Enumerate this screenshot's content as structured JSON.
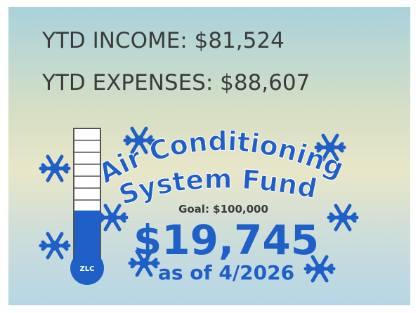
{
  "header": {
    "income": "YTD INCOME: $81,524",
    "expenses": "YTD EXPENSES: $88,607"
  },
  "fund": {
    "title_line1": "Air Conditioning",
    "title_line2": "System Fund",
    "goal": "Goal: $100,000",
    "amount": "$19,745",
    "as_of": "as of 4/2026",
    "badge": "ZLC"
  }
}
